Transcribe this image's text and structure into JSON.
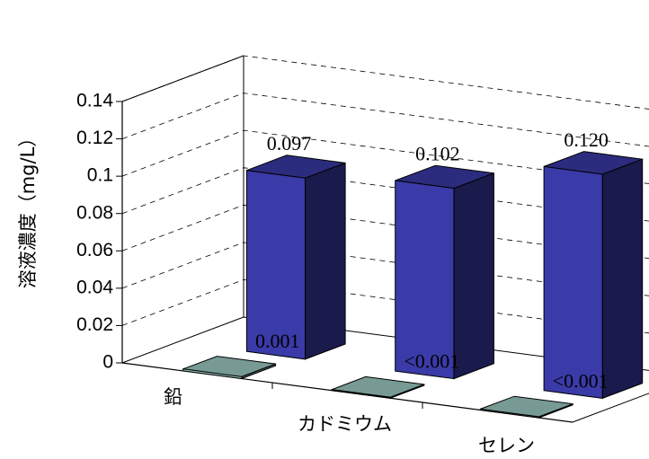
{
  "chart_data": {
    "type": "bar",
    "title": "",
    "xlabel": "",
    "ylabel": "溶液濃度（mg/L）",
    "ylim": [
      0,
      0.14
    ],
    "yticks": [
      "0",
      "0.02",
      "0.04",
      "0.06",
      "0.08",
      "0.1",
      "0.12",
      "0.14"
    ],
    "categories": [
      "鉛",
      "カドミウム",
      "セレン"
    ],
    "grid": "dashed",
    "style": "3d-columns",
    "series": [
      {
        "values": [
          0.097,
          0.102,
          0.12
        ],
        "labels": [
          "0.097",
          "0.102",
          "0.120"
        ],
        "color": "#3a3aa8"
      },
      {
        "values": [
          0.001,
          0.0005,
          0.0005
        ],
        "labels": [
          "0.001",
          "<0.001",
          "<0.001"
        ],
        "color": "#9ecdc6"
      }
    ]
  }
}
